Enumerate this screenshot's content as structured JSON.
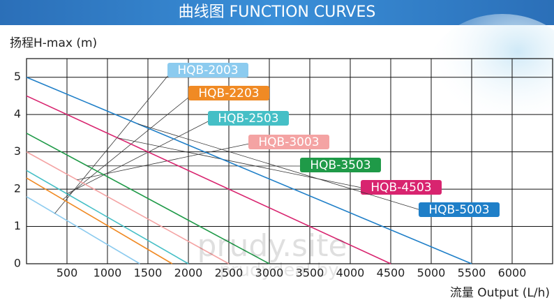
{
  "chart_data": {
    "type": "line",
    "title": "曲线图 FUNCTION CURVES",
    "y_label": "扬程H-max (m)",
    "x_label": "流量 Output (L/h)",
    "watermarks": [
      "prudy.site",
      "prudydeal.by"
    ],
    "xlim": [
      0,
      6500
    ],
    "ylim": [
      0,
      5.5
    ],
    "xticks": [
      500,
      1000,
      1500,
      2000,
      2500,
      3000,
      3500,
      4000,
      4500,
      5000,
      5500,
      6000
    ],
    "yticks": [
      0,
      1,
      2,
      3,
      4,
      5
    ],
    "grid": true,
    "series": [
      {
        "name": "HQB-2003",
        "color": "#8ccbef",
        "x": [
          0,
          1400
        ],
        "values": [
          1.8,
          0
        ]
      },
      {
        "name": "HQB-2203",
        "color": "#f08a24",
        "x": [
          0,
          1800
        ],
        "values": [
          2.3,
          0
        ]
      },
      {
        "name": "HQB-2503",
        "color": "#45bfc6",
        "x": [
          0,
          2000
        ],
        "values": [
          2.5,
          0
        ]
      },
      {
        "name": "HQB-3003",
        "color": "#f4a3a3",
        "x": [
          0,
          2500
        ],
        "values": [
          3,
          0
        ]
      },
      {
        "name": "HQB-3503",
        "color": "#1f9a48",
        "x": [
          0,
          3000
        ],
        "values": [
          3.5,
          0
        ]
      },
      {
        "name": "HQB-4503",
        "color": "#d8246f",
        "x": [
          0,
          4500
        ],
        "values": [
          4.5,
          0
        ]
      },
      {
        "name": "HQB-5003",
        "color": "#1f7fc8",
        "x": [
          0,
          5500
        ],
        "values": [
          5,
          0
        ]
      }
    ]
  }
}
